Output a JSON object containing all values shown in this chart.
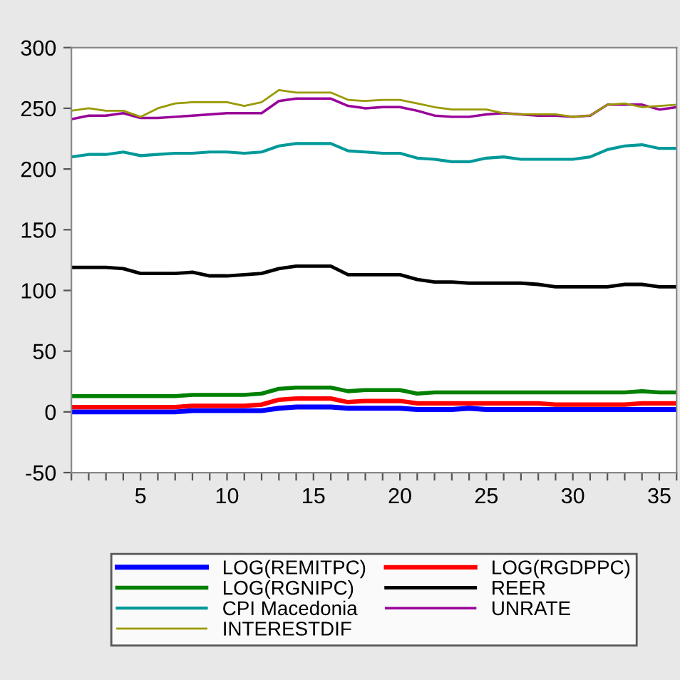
{
  "chart_data": {
    "type": "line",
    "x": [
      1,
      2,
      3,
      4,
      5,
      6,
      7,
      8,
      9,
      10,
      11,
      12,
      13,
      14,
      15,
      16,
      17,
      18,
      19,
      20,
      21,
      22,
      23,
      24,
      25,
      26,
      27,
      28,
      29,
      30,
      31,
      32,
      33,
      34,
      35,
      36
    ],
    "xlim": [
      1,
      36
    ],
    "xticks": [
      {
        "value": 1,
        "label": null
      },
      {
        "value": 2,
        "label": null
      },
      {
        "value": 3,
        "label": null
      },
      {
        "value": 4,
        "label": null
      },
      5,
      {
        "value": 6,
        "label": null
      },
      {
        "value": 7,
        "label": null
      },
      {
        "value": 8,
        "label": null
      },
      {
        "value": 9,
        "label": null
      },
      10,
      {
        "value": 11,
        "label": null
      },
      {
        "value": 12,
        "label": null
      },
      {
        "value": 13,
        "label": null
      },
      {
        "value": 14,
        "label": null
      },
      15,
      {
        "value": 16,
        "label": null
      },
      {
        "value": 17,
        "label": null
      },
      {
        "value": 18,
        "label": null
      },
      {
        "value": 19,
        "label": null
      },
      20,
      {
        "value": 21,
        "label": null
      },
      {
        "value": 22,
        "label": null
      },
      {
        "value": 23,
        "label": null
      },
      {
        "value": 24,
        "label": null
      },
      25,
      {
        "value": 26,
        "label": null
      },
      {
        "value": 27,
        "label": null
      },
      {
        "value": 28,
        "label": null
      },
      {
        "value": 29,
        "label": null
      },
      30,
      {
        "value": 31,
        "label": null
      },
      {
        "value": 32,
        "label": null
      },
      {
        "value": 33,
        "label": null
      },
      {
        "value": 34,
        "label": null
      },
      35,
      {
        "value": 36,
        "label": null
      }
    ],
    "ylim": [
      -50,
      300
    ],
    "yticks": [
      -50,
      0,
      50,
      100,
      150,
      200,
      250,
      300
    ],
    "grid": false,
    "legend": "bottom",
    "marker": "none",
    "line_style": "solid",
    "series": [
      {
        "name": "LOG(REMITPC)",
        "color": "#0000ff",
        "values": [
          0,
          0,
          0,
          0,
          0,
          0,
          0,
          1,
          1,
          1,
          1,
          1,
          3,
          4,
          4,
          4,
          3,
          3,
          3,
          3,
          2,
          2,
          2,
          3,
          2,
          2,
          2,
          2,
          2,
          2,
          2,
          2,
          2,
          2,
          2,
          2
        ]
      },
      {
        "name": "LOG(RGDPPC)",
        "color": "#ff0000",
        "values": [
          4,
          4,
          4,
          4,
          4,
          4,
          4,
          5,
          5,
          5,
          5,
          6,
          10,
          11,
          11,
          11,
          8,
          9,
          9,
          9,
          7,
          7,
          7,
          7,
          7,
          7,
          7,
          7,
          6,
          6,
          6,
          6,
          6,
          7,
          7,
          7
        ]
      },
      {
        "name": "LOG(RGNIPC)",
        "color": "#008000",
        "values": [
          13,
          13,
          13,
          13,
          13,
          13,
          13,
          14,
          14,
          14,
          14,
          15,
          19,
          20,
          20,
          20,
          17,
          18,
          18,
          18,
          15,
          16,
          16,
          16,
          16,
          16,
          16,
          16,
          16,
          16,
          16,
          16,
          16,
          17,
          16,
          16
        ]
      },
      {
        "name": "REER",
        "color": "#000000",
        "values": [
          119,
          119,
          119,
          118,
          114,
          114,
          114,
          115,
          112,
          112,
          113,
          114,
          118,
          120,
          120,
          120,
          113,
          113,
          113,
          113,
          109,
          107,
          107,
          106,
          106,
          106,
          106,
          105,
          103,
          103,
          103,
          103,
          105,
          105,
          103,
          103
        ]
      },
      {
        "name": "CPI Macedonia",
        "color": "#009999",
        "values": [
          210,
          212,
          212,
          214,
          211,
          212,
          213,
          213,
          214,
          214,
          213,
          214,
          219,
          221,
          221,
          221,
          215,
          214,
          213,
          213,
          209,
          208,
          206,
          206,
          209,
          210,
          208,
          208,
          208,
          208,
          210,
          216,
          219,
          220,
          217,
          217
        ]
      },
      {
        "name": "UNRATE",
        "color": "#990099",
        "values": [
          241,
          244,
          244,
          246,
          242,
          242,
          243,
          244,
          245,
          246,
          246,
          246,
          256,
          258,
          258,
          258,
          252,
          250,
          251,
          251,
          248,
          244,
          243,
          243,
          245,
          246,
          245,
          244,
          244,
          243,
          244,
          253,
          253,
          253,
          249,
          251
        ]
      },
      {
        "name": "INTERESTDIF",
        "color": "#999900",
        "values": [
          248,
          250,
          248,
          248,
          243,
          250,
          254,
          255,
          255,
          255,
          252,
          255,
          265,
          263,
          263,
          263,
          257,
          256,
          257,
          257,
          254,
          251,
          249,
          249,
          249,
          246,
          245,
          245,
          245,
          243,
          244,
          253,
          254,
          251,
          252,
          253
        ]
      }
    ]
  }
}
